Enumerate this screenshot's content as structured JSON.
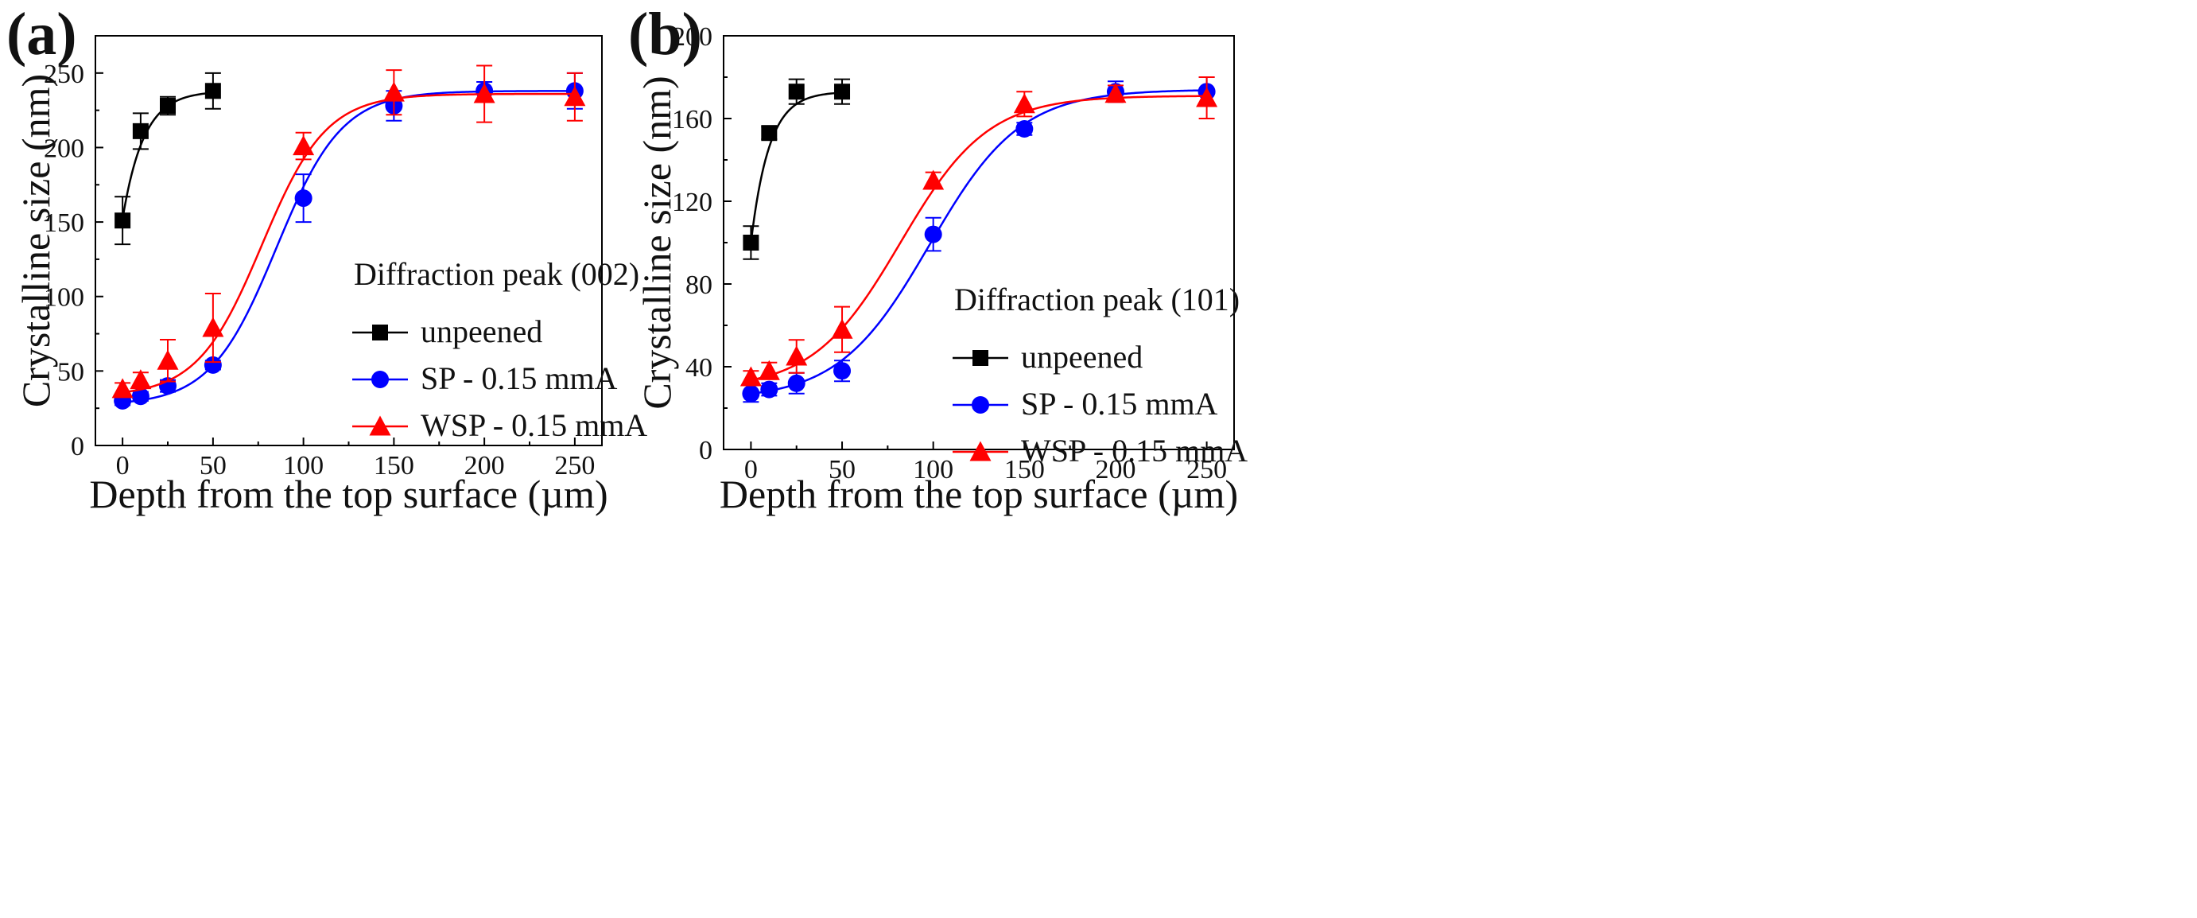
{
  "figure": {
    "panels": [
      "(a)",
      "(b)"
    ]
  },
  "chart_data": [
    {
      "type": "scatter",
      "panel_label": "(a)",
      "title": "",
      "xlabel": "Depth from the top surface (µm)",
      "ylabel": "Crystalline size (nm)",
      "xlim": [
        -15,
        265
      ],
      "ylim": [
        0,
        275
      ],
      "xticks": [
        0,
        50,
        100,
        150,
        200,
        250
      ],
      "yticks": [
        0,
        50,
        100,
        150,
        200,
        250
      ],
      "grid": false,
      "legend_title": "Diffraction peak (002)",
      "legend_position": "right-middle",
      "series": [
        {
          "name": "unpeened",
          "color": "#000000",
          "marker": "square",
          "x": [
            0,
            10,
            25,
            50
          ],
          "y": [
            151,
            211,
            228,
            238
          ],
          "err": [
            16,
            12,
            6,
            12
          ],
          "fit": {
            "model": "exp",
            "A": 238,
            "B": 86,
            "k": 0.0856,
            "xmax": 50
          }
        },
        {
          "name": "SP - 0.15 mmA",
          "color": "#0000ff",
          "marker": "circle",
          "x": [
            0,
            10,
            25,
            50,
            100,
            150,
            200,
            250
          ],
          "y": [
            30,
            33,
            40,
            54,
            166,
            228,
            238,
            238
          ],
          "err": [
            3,
            3,
            4,
            3,
            16,
            10,
            6,
            12
          ],
          "fit": {
            "model": "sigmoid",
            "A1": 27,
            "A2": 238,
            "x0": 85,
            "dx": 18.2
          }
        },
        {
          "name": "WSP - 0.15 mmA",
          "color": "#ff0000",
          "marker": "triangle",
          "x": [
            0,
            10,
            25,
            50,
            100,
            150,
            200,
            250
          ],
          "y": [
            38,
            44,
            57,
            79,
            201,
            237,
            236,
            234
          ],
          "err": [
            4,
            5,
            14,
            23,
            9,
            15,
            19,
            16
          ],
          "fit": {
            "model": "sigmoid",
            "A1": 33,
            "A2": 236,
            "x0": 77,
            "dx": 17.8
          }
        }
      ]
    },
    {
      "type": "scatter",
      "panel_label": "(b)",
      "title": "",
      "xlabel": "Depth from the top surface (µm)",
      "ylabel": "Crystalline size (nm)",
      "xlim": [
        -15,
        265
      ],
      "ylim": [
        0,
        200
      ],
      "xticks": [
        0,
        50,
        100,
        150,
        200,
        250
      ],
      "yticks": [
        0,
        40,
        80,
        120,
        160,
        200
      ],
      "grid": false,
      "legend_title": "Diffraction peak (101)",
      "legend_position": "right-lower",
      "series": [
        {
          "name": "unpeened",
          "color": "#000000",
          "marker": "square",
          "x": [
            0,
            10,
            25,
            50
          ],
          "y": [
            100,
            153,
            173,
            173
          ],
          "err": [
            8,
            3,
            6,
            6
          ],
          "fit": {
            "model": "exp",
            "A": 173,
            "B": 73,
            "k": 0.1,
            "xmax": 50
          }
        },
        {
          "name": "SP - 0.15 mmA",
          "color": "#0000ff",
          "marker": "circle",
          "x": [
            0,
            10,
            25,
            50,
            100,
            150,
            200,
            250
          ],
          "y": [
            27,
            29,
            32,
            38,
            104,
            155,
            173,
            173
          ],
          "err": [
            4,
            3,
            5,
            5,
            8,
            3,
            5,
            7
          ],
          "fit": {
            "model": "sigmoid",
            "A1": 24,
            "A2": 174,
            "x0": 98,
            "dx": 25
          }
        },
        {
          "name": "WSP - 0.15 mmA",
          "color": "#ff0000",
          "marker": "triangle",
          "x": [
            0,
            10,
            25,
            50,
            100,
            150,
            200,
            250
          ],
          "y": [
            35,
            38,
            45,
            58,
            130,
            167,
            172,
            170
          ],
          "err": [
            3,
            4,
            8,
            11,
            4,
            6,
            4,
            10
          ],
          "fit": {
            "model": "sigmoid",
            "A1": 29,
            "A2": 171,
            "x0": 82,
            "dx": 24
          }
        }
      ]
    }
  ]
}
